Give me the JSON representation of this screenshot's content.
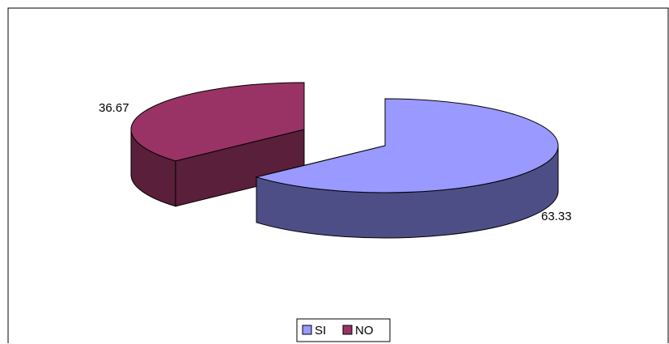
{
  "chart_data": {
    "type": "pie",
    "style": "3d-exploded",
    "categories": [
      "SI",
      "NO"
    ],
    "values": [
      63.33,
      36.67
    ],
    "data_labels": [
      "63.33",
      "36.67"
    ],
    "legend": {
      "position": "bottom",
      "items": [
        "SI",
        "NO"
      ]
    },
    "colors": {
      "SI": "#9999ff",
      "SI_side": "#4e4e87",
      "NO": "#993366",
      "NO_side": "#5a1f3a",
      "outline": "#000000"
    },
    "title": ""
  }
}
